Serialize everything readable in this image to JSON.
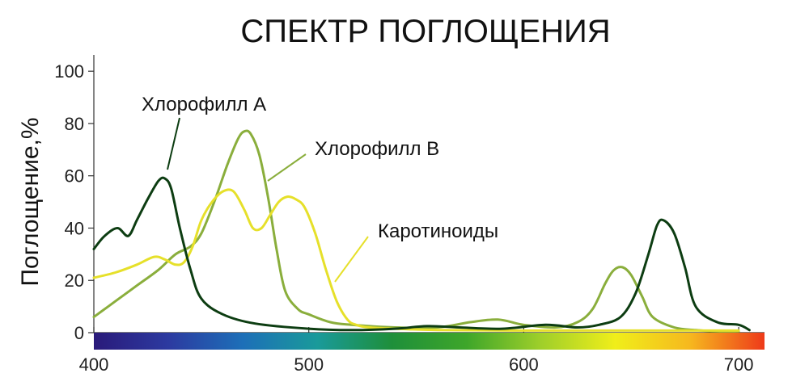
{
  "chart_data": {
    "type": "line",
    "title": "СПЕКТР ПОГЛОЩЕНИЯ",
    "ylabel": "Поглощение,%",
    "xlabel": "",
    "xlim": [
      400,
      712
    ],
    "ylim": [
      0,
      105
    ],
    "x_ticks": [
      400,
      500,
      600,
      700
    ],
    "y_ticks": [
      0,
      20,
      40,
      60,
      80,
      100
    ],
    "grid": false,
    "spectrum_bar_colors": [
      "#2a1a7a",
      "#2c3aa0",
      "#1d6fb8",
      "#1a9a9a",
      "#1e8f3a",
      "#3ea62a",
      "#9fcf2a",
      "#f0ee1a",
      "#f6b81e",
      "#ee3a1a"
    ],
    "series": [
      {
        "name": "Хлорофилл А",
        "color": "#0d3d12",
        "x": [
          400,
          405,
          411,
          416,
          420,
          425,
          430,
          433,
          436,
          440,
          445,
          450,
          460,
          475,
          500,
          520,
          540,
          555,
          570,
          590,
          610,
          625,
          635,
          645,
          652,
          658,
          662,
          665,
          670,
          675,
          680,
          690,
          700,
          705
        ],
        "y": [
          32,
          37,
          40,
          37,
          43,
          51,
          58,
          59,
          55,
          40,
          24,
          13,
          7,
          3.5,
          1.5,
          1,
          1.5,
          2.5,
          2,
          1.5,
          3,
          2,
          3,
          6,
          15,
          30,
          41,
          43,
          38,
          25,
          10,
          4,
          3,
          1
        ]
      },
      {
        "name": "Хлорофилл В",
        "color": "#8aae3c",
        "x": [
          400,
          410,
          420,
          430,
          438,
          445,
          450,
          456,
          462,
          467,
          470,
          473,
          477,
          481,
          485,
          489,
          495,
          500,
          510,
          520,
          540,
          560,
          575,
          588,
          600,
          615,
          625,
          632,
          638,
          642,
          646,
          650,
          655,
          660,
          670,
          680,
          690,
          700
        ],
        "y": [
          6,
          12,
          18,
          24,
          30,
          33,
          38,
          50,
          64,
          74,
          77,
          76,
          68,
          52,
          32,
          16,
          9,
          7,
          4,
          3,
          2,
          2,
          4,
          5,
          3,
          2,
          4,
          9,
          19,
          24,
          25,
          22,
          14,
          6,
          2,
          1,
          0.5,
          0.5
        ]
      },
      {
        "name": "Каротиноиды",
        "color": "#e6e02a",
        "x": [
          400,
          410,
          420,
          428,
          433,
          438,
          442,
          446,
          450,
          455,
          460,
          465,
          470,
          474,
          478,
          482,
          486,
          490,
          494,
          498,
          503,
          508,
          513,
          518,
          522,
          528,
          540,
          560,
          600,
          650,
          700
        ],
        "y": [
          21,
          23,
          26,
          29,
          28,
          26,
          27,
          33,
          43,
          50,
          54,
          54,
          47,
          40,
          40,
          45,
          50,
          52,
          51,
          48,
          38,
          24,
          12,
          5,
          3,
          2,
          1.5,
          1,
          0.8,
          0.8,
          0.8
        ]
      }
    ],
    "annotations": [
      {
        "text": "Хлорофилл А",
        "series": 0
      },
      {
        "text": "Хлорофилл В",
        "series": 1
      },
      {
        "text": "Каротиноиды",
        "series": 2
      }
    ]
  }
}
